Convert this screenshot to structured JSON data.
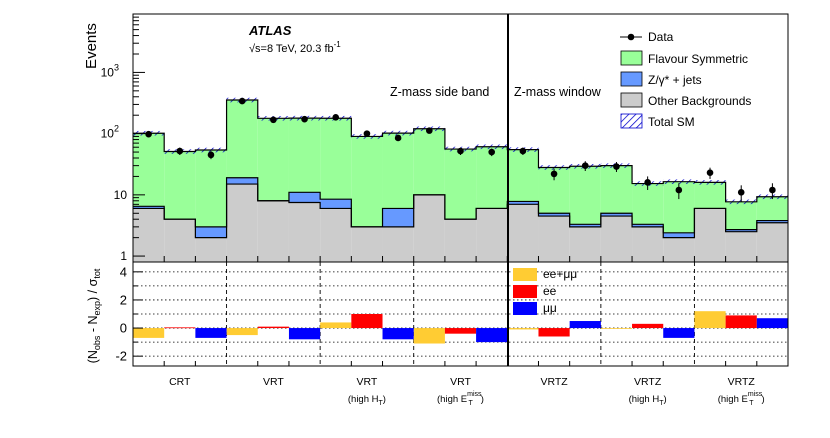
{
  "colors": {
    "flavour_symmetric": "#99ff99",
    "zgamma_jets": "#6699ff",
    "other_bkg": "#cccccc",
    "total_sm_hatch": "#0000cc",
    "ee_mumu": "#ffcc33",
    "ee": "#ff0000",
    "mumu": "#0000ff"
  },
  "chart_data": [
    {
      "type": "bar",
      "stacked": true,
      "yscale": "log",
      "ylabel": "Events",
      "ylim": [
        0.8,
        9000
      ],
      "yticks": [
        {
          "value": 1,
          "label": "1"
        },
        {
          "value": 10,
          "label": "10"
        },
        {
          "value": 100,
          "label": "10",
          "sup": "2"
        },
        {
          "value": 1000,
          "label": "10",
          "sup": "3"
        }
      ],
      "experiment": "ATLAS",
      "energy_label": "√s=8 TeV, 20.3 fb",
      "lumi_exp": "-1",
      "region_labels": [
        "Z-mass side band",
        "Z-mass window"
      ],
      "legend": {
        "data": "Data",
        "flavour_symmetric": "Flavour Symmetric",
        "zgamma_jets": "Z/γ* + jets",
        "other_bkg": "Other Backgrounds",
        "total_sm": "Total SM"
      },
      "bins": [
        {
          "other": 6,
          "zjets": 0.5,
          "fs": 95,
          "data": 98
        },
        {
          "other": 4,
          "zjets": 0,
          "fs": 47,
          "data": 52
        },
        {
          "other": 2,
          "zjets": 1,
          "fs": 51,
          "data": 45
        },
        {
          "other": 15,
          "zjets": 4,
          "fs": 335,
          "data": 340
        },
        {
          "other": 8,
          "zjets": 0,
          "fs": 170,
          "data": 168
        },
        {
          "other": 7.5,
          "zjets": 3.5,
          "fs": 168,
          "data": 172
        },
        {
          "other": 6,
          "zjets": 2.5,
          "fs": 170,
          "data": 185
        },
        {
          "other": 3,
          "zjets": 0,
          "fs": 87,
          "data": 100
        },
        {
          "other": 3,
          "zjets": 3,
          "fs": 96,
          "data": 85
        },
        {
          "other": 10,
          "zjets": 0,
          "fs": 110,
          "data": 112
        },
        {
          "other": 4,
          "zjets": 0,
          "fs": 52,
          "data": 52
        },
        {
          "other": 6,
          "zjets": 0,
          "fs": 55,
          "data": 50
        },
        {
          "other": 7,
          "zjets": 0.8,
          "fs": 47,
          "data": 52
        },
        {
          "other": 4.5,
          "zjets": 0.5,
          "fs": 23,
          "data": 22
        },
        {
          "other": 3,
          "zjets": 0.3,
          "fs": 26,
          "data": 30
        },
        {
          "other": 4.5,
          "zjets": 0.5,
          "fs": 25,
          "data": 29
        },
        {
          "other": 3,
          "zjets": 0.3,
          "fs": 12,
          "data": 16
        },
        {
          "other": 2,
          "zjets": 0.4,
          "fs": 14,
          "data": 12
        },
        {
          "other": 6,
          "zjets": 0,
          "fs": 10,
          "data": 23
        },
        {
          "other": 2.5,
          "zjets": 0.2,
          "fs": 5,
          "data": 11
        },
        {
          "other": 3.5,
          "zjets": 0.3,
          "fs": 5.5,
          "data": 12
        }
      ]
    },
    {
      "type": "bar",
      "ylabel": "(N_obs - N_exp) / σ_tot",
      "ylim": [
        -2.7,
        4.7
      ],
      "yticks": [
        {
          "value": -2,
          "label": "-2"
        },
        {
          "value": 0,
          "label": "0"
        },
        {
          "value": 2,
          "label": "2"
        },
        {
          "value": 4,
          "label": "4"
        }
      ],
      "legend": {
        "ee_mumu": "ee+μμ",
        "ee": "ee",
        "mumu": "μμ"
      },
      "series": [
        {
          "name": "ee+μμ",
          "values": [
            -0.7,
            -0.5,
            0.4,
            -1.1,
            -0.1,
            0.0,
            1.2
          ]
        },
        {
          "name": "ee",
          "values": [
            0.05,
            0.1,
            1.0,
            -0.4,
            -0.6,
            0.3,
            0.9
          ]
        },
        {
          "name": "μμ",
          "values": [
            -0.7,
            -0.8,
            -0.8,
            -1.0,
            0.5,
            -0.7,
            0.7
          ]
        }
      ],
      "categories": [
        {
          "label": "CRT"
        },
        {
          "label": "VRT"
        },
        {
          "label": "VRT",
          "sub": "(high H",
          "sub_suffix": "T",
          "sub_end": ")"
        },
        {
          "label": "VRT",
          "sub": "(high E",
          "sub_suffix": "T",
          "sub_sup": "miss",
          "sub_end": ")"
        },
        {
          "label": "VRTZ"
        },
        {
          "label": "VRTZ",
          "sub": "(high H",
          "sub_suffix": "T",
          "sub_end": ")"
        },
        {
          "label": "VRTZ",
          "sub": "(high E",
          "sub_suffix": "T",
          "sub_sup": "miss",
          "sub_end": ")"
        }
      ]
    }
  ]
}
